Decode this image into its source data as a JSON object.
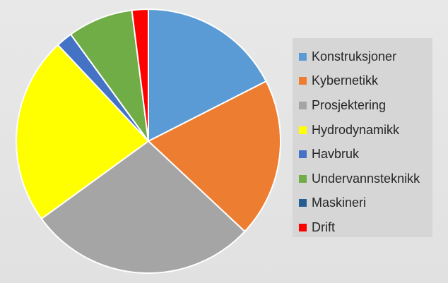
{
  "chart_data": {
    "type": "pie",
    "title": "",
    "start_angle_deg": 0,
    "direction": "clockwise",
    "legend_position": "right",
    "categories": [
      "Konstruksjoner",
      "Kybernetikk",
      "Prosjektering",
      "Hydrodynamikk",
      "Havbruk",
      "Undervannsteknikk",
      "Maskineri",
      "Drift"
    ],
    "values": [
      17.5,
      19.5,
      28.0,
      23.0,
      2.0,
      8.0,
      0,
      2.0
    ],
    "colors": [
      "#5b9bd5",
      "#ed7d31",
      "#a5a5a5",
      "#ffff00",
      "#4472c4",
      "#70ad47",
      "#255e91",
      "#ff0000"
    ]
  }
}
